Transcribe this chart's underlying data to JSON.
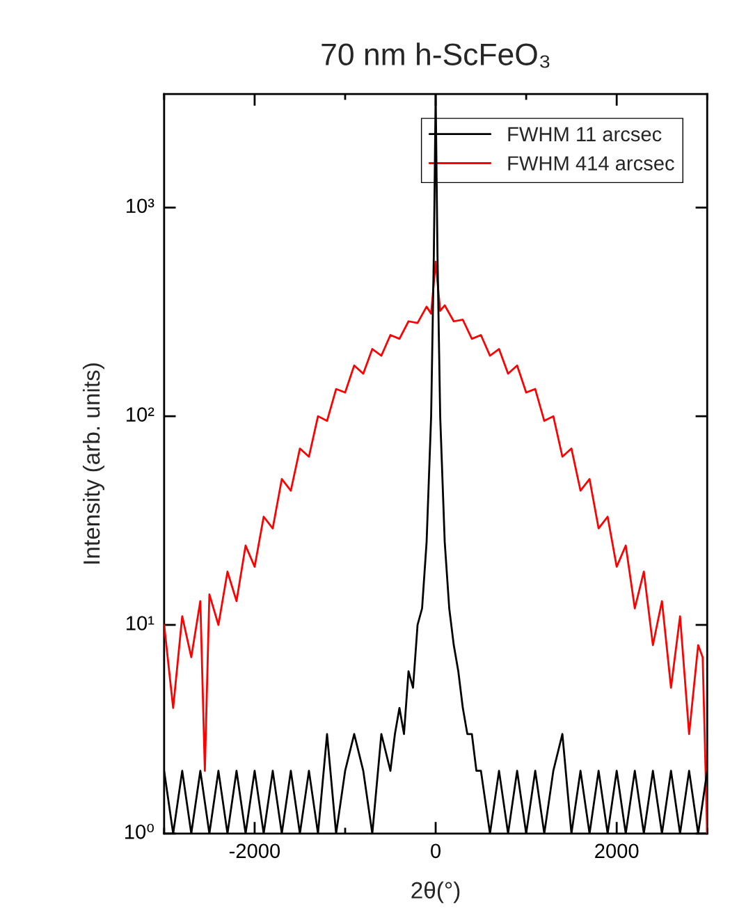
{
  "chart_data": {
    "type": "line",
    "title": "70 nm h-ScFeO₃",
    "xlabel": "2θ(°)",
    "ylabel": "Intensity (arb. units)",
    "log": "y",
    "legend": "top right",
    "xlim": [
      -3000,
      3000
    ],
    "ylim": [
      1,
      3500
    ],
    "xticks": [
      -2000,
      0,
      2000
    ],
    "yticks": [
      {
        "value": 1,
        "label": "10⁰"
      },
      {
        "value": 10,
        "label": "10¹"
      },
      {
        "value": 100,
        "label": "10²"
      },
      {
        "value": 1000,
        "label": "10³"
      }
    ],
    "series": [
      {
        "name": "FWHM 11 arcsec",
        "color": "#000000",
        "x": [
          -3000,
          -2900,
          -2800,
          -2700,
          -2600,
          -2500,
          -2400,
          -2300,
          -2200,
          -2100,
          -2000,
          -1900,
          -1800,
          -1700,
          -1600,
          -1500,
          -1400,
          -1300,
          -1200,
          -1100,
          -1000,
          -900,
          -800,
          -700,
          -600,
          -500,
          -450,
          -400,
          -350,
          -300,
          -250,
          -200,
          -150,
          -100,
          -50,
          -20,
          0,
          20,
          50,
          100,
          150,
          200,
          250,
          300,
          350,
          400,
          450,
          500,
          600,
          700,
          800,
          900,
          1000,
          1100,
          1200,
          1300,
          1400,
          1500,
          1600,
          1700,
          1800,
          1900,
          2000,
          2100,
          2200,
          2300,
          2400,
          2500,
          2600,
          2700,
          2800,
          2900,
          3000
        ],
        "values": [
          2,
          1,
          2,
          1,
          2,
          1,
          2,
          1,
          2,
          1,
          2,
          1,
          2,
          1,
          2,
          1,
          2,
          1,
          3,
          1,
          2,
          3,
          2,
          1,
          3,
          2,
          3,
          4,
          3,
          6,
          5,
          10,
          12,
          25,
          100,
          600,
          3500,
          600,
          100,
          25,
          12,
          8,
          6,
          4,
          3,
          3,
          2,
          2,
          1,
          2,
          1,
          2,
          1,
          2,
          1,
          2,
          3,
          1,
          2,
          1,
          2,
          1,
          2,
          1,
          2,
          1,
          2,
          1,
          2,
          1,
          2,
          1,
          2
        ]
      },
      {
        "name": "FWHM 414 arcsec",
        "color": "#ff0000",
        "x": [
          -3000,
          -2900,
          -2800,
          -2700,
          -2600,
          -2550,
          -2500,
          -2400,
          -2300,
          -2200,
          -2100,
          -2000,
          -1900,
          -1800,
          -1700,
          -1600,
          -1500,
          -1400,
          -1300,
          -1200,
          -1100,
          -1000,
          -900,
          -800,
          -700,
          -600,
          -500,
          -400,
          -300,
          -200,
          -100,
          -50,
          0,
          50,
          100,
          200,
          300,
          400,
          500,
          600,
          700,
          800,
          900,
          1000,
          1100,
          1200,
          1300,
          1400,
          1500,
          1600,
          1700,
          1800,
          1900,
          2000,
          2100,
          2200,
          2300,
          2400,
          2500,
          2600,
          2700,
          2800,
          2900,
          2950,
          3000
        ],
        "values": [
          10,
          4,
          11,
          7,
          13,
          2,
          14,
          10,
          18,
          13,
          24,
          19,
          33,
          29,
          50,
          44,
          70,
          64,
          100,
          95,
          135,
          130,
          175,
          160,
          210,
          195,
          245,
          235,
          285,
          280,
          335,
          310,
          550,
          320,
          340,
          285,
          290,
          235,
          245,
          195,
          210,
          160,
          175,
          130,
          135,
          95,
          100,
          64,
          70,
          44,
          50,
          29,
          33,
          19,
          24,
          12,
          18,
          8,
          13,
          5,
          11,
          3,
          8,
          7,
          1
        ]
      }
    ]
  }
}
